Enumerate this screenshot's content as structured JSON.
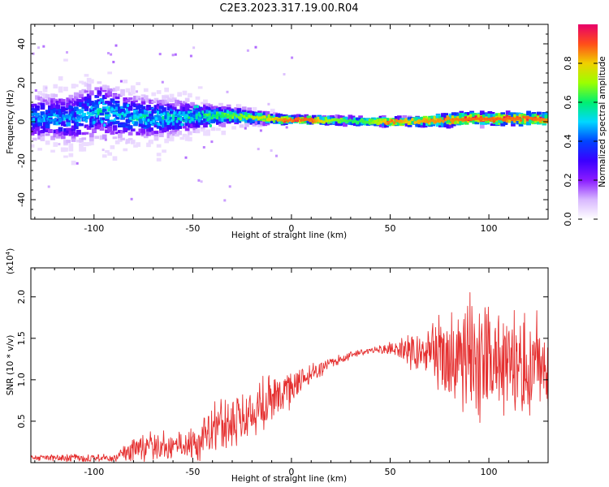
{
  "title": "C2E3.2023.317.19.00.R04",
  "colors": {
    "snr_line": "#e53030",
    "colormap": [
      "#ffffff",
      "#d8b8ff",
      "#8a1cff",
      "#3a00ff",
      "#0044ff",
      "#00d8ff",
      "#00f070",
      "#9cff00",
      "#f0d000",
      "#ff4d1a",
      "#e8006a"
    ]
  },
  "chart_data": [
    {
      "type": "heatmap",
      "xlabel": "Height of straight line (km)",
      "ylabel": "Frequency (Hz)",
      "xlim": [
        -132,
        130
      ],
      "ylim": [
        -50,
        50
      ],
      "xticks": [
        -100,
        -50,
        0,
        50,
        100
      ],
      "yticks": [
        -40,
        -20,
        0,
        20,
        40
      ],
      "ridge": {
        "x": [
          -130,
          -110,
          -98,
          -80,
          -60,
          -45,
          -30,
          -15,
          -5,
          0,
          10,
          20,
          30,
          40,
          50,
          60,
          70,
          80,
          90,
          100,
          110,
          120,
          130
        ],
        "center_hz": [
          2,
          2,
          6,
          2,
          2,
          3,
          3,
          2,
          1,
          1,
          1,
          0.5,
          0.5,
          0,
          0,
          0,
          0.5,
          1,
          1.5,
          1.5,
          1.5,
          1.5,
          1.5
        ],
        "spread_hz": [
          7,
          8,
          9,
          7,
          6,
          4,
          3,
          2,
          1.5,
          1.2,
          1.5,
          1.5,
          1.5,
          1.5,
          1.5,
          1.5,
          2,
          2.5,
          2.5,
          2.5,
          2.5,
          2.5,
          2.5
        ],
        "peak_amplitude": [
          0.45,
          0.45,
          0.5,
          0.5,
          0.5,
          0.55,
          0.65,
          0.75,
          0.85,
          0.88,
          0.88,
          0.7,
          0.62,
          0.65,
          0.88,
          0.8,
          0.85,
          0.85,
          0.88,
          0.88,
          0.88,
          0.88,
          0.85
        ]
      },
      "colorbar": {
        "label": "Normalized spectral amplitude",
        "range": [
          0,
          1
        ],
        "ticks": [
          "0.0",
          "0.2",
          "0.4",
          "0.6",
          "0.8"
        ]
      }
    },
    {
      "type": "line",
      "xlabel": "Height of straight line (km)",
      "ylabel": "SNR (10 * v/v)",
      "exponent_label": "(x10",
      "exponent_power": "4",
      "exponent_close": ")",
      "xlim": [
        -132,
        130
      ],
      "ylim": [
        0,
        2.35
      ],
      "xticks": [
        -100,
        -50,
        0,
        50,
        100
      ],
      "yticks": [
        0.5,
        1.0,
        1.5,
        2.0
      ],
      "ytick_labels": [
        "0.5",
        "1.0",
        "1.5",
        "2.0"
      ],
      "series": [
        {
          "x": [
            -130,
            -110,
            -90,
            -80,
            -70,
            -60,
            -50,
            -40,
            -30,
            -20,
            -10,
            0,
            10,
            20,
            30,
            40,
            50,
            60,
            70,
            80,
            90,
            100,
            110,
            120,
            130
          ],
          "mean": [
            0.06,
            0.06,
            0.05,
            0.15,
            0.2,
            0.18,
            0.2,
            0.3,
            0.5,
            0.58,
            0.8,
            0.92,
            1.1,
            1.2,
            1.3,
            1.35,
            1.38,
            1.35,
            1.3,
            1.3,
            1.25,
            1.25,
            1.2,
            1.2,
            1.2
          ],
          "amplitude": [
            0.03,
            0.04,
            0.04,
            0.15,
            0.15,
            0.13,
            0.15,
            0.3,
            0.3,
            0.28,
            0.25,
            0.18,
            0.1,
            0.06,
            0.04,
            0.03,
            0.05,
            0.15,
            0.25,
            0.45,
            0.55,
            0.55,
            0.5,
            0.5,
            0.45
          ]
        }
      ]
    }
  ]
}
